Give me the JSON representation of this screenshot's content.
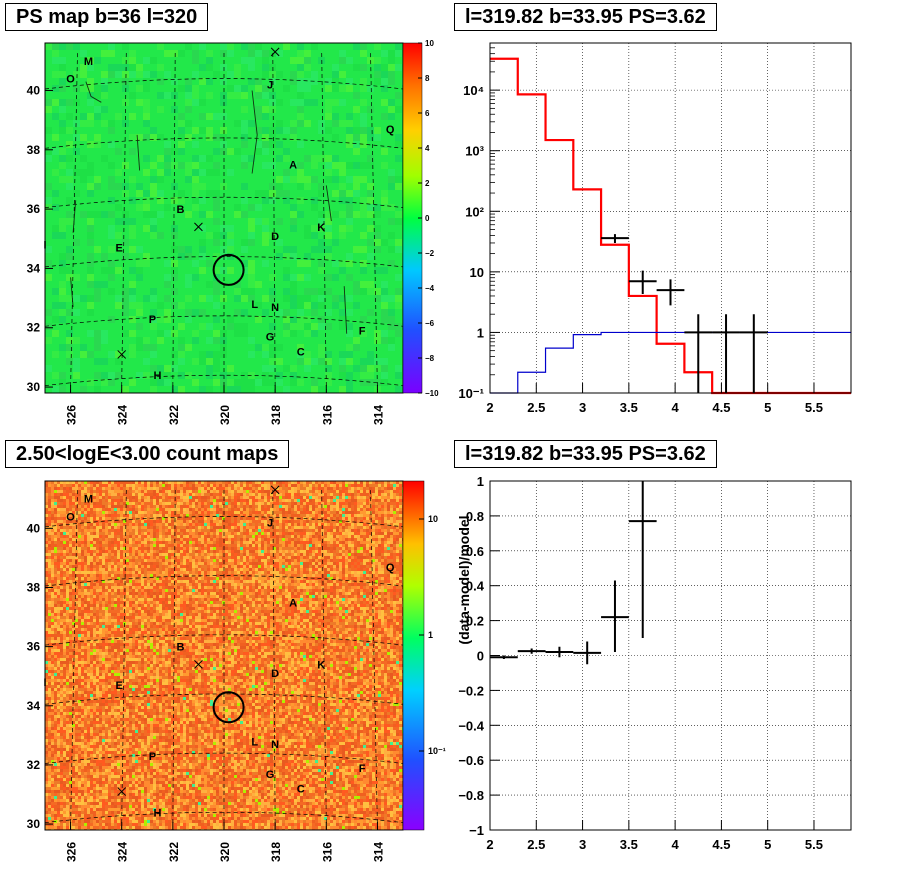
{
  "panels": {
    "ps_map": {
      "title": "PS map b=36 l=320",
      "x_ticks": [
        "326",
        "324",
        "322",
        "320",
        "318",
        "316",
        "314"
      ],
      "y_ticks": [
        "40",
        "38",
        "36",
        "34",
        "32",
        "30"
      ],
      "colorbar_ticks": [
        "10",
        "8",
        "6",
        "4",
        "2",
        "0",
        "−2",
        "−4",
        "−6",
        "−8",
        "−10"
      ],
      "source_labels": [
        "M",
        "O",
        "J",
        "Q",
        "A",
        "B",
        "I",
        "E",
        "D",
        "K",
        "L",
        "N",
        "P",
        "F",
        "G",
        "C",
        "H"
      ]
    },
    "count_map": {
      "title": "2.50<logE<3.00 count maps",
      "x_ticks": [
        "326",
        "324",
        "322",
        "320",
        "318",
        "316",
        "314"
      ],
      "y_ticks": [
        "40",
        "38",
        "36",
        "34",
        "32",
        "30"
      ],
      "colorbar_ticks": [
        "10",
        "1",
        "10⁻¹"
      ],
      "source_labels": [
        "M",
        "O",
        "J",
        "Q",
        "A",
        "B",
        "I",
        "E",
        "D",
        "K",
        "L",
        "N",
        "P",
        "F",
        "G",
        "C",
        "H"
      ]
    },
    "spectrum": {
      "title": "l=319.82 b=33.95 PS=3.62"
    },
    "residual": {
      "title": "l=319.82 b=33.95 PS=3.62",
      "ylabel": "(data-model)/model"
    }
  },
  "chart_data": [
    {
      "type": "heatmap",
      "xlim": [
        327,
        313
      ],
      "ylim": [
        29.8,
        41.6
      ],
      "colorbar_range": [
        -10,
        10
      ],
      "marker_circle": {
        "l": 319.82,
        "b": 33.95
      },
      "colors": {
        "base": "#22e84a",
        "contour": "#000000"
      }
    },
    {
      "type": "heatmap",
      "xlim": [
        327,
        313
      ],
      "ylim": [
        29.8,
        41.6
      ],
      "colorbar_scale": "log",
      "marker_circle": {
        "l": 319.82,
        "b": 33.95
      },
      "colors": {
        "base": "#f08030",
        "contour": "#000000"
      }
    },
    {
      "type": "line",
      "xlim": [
        2,
        5.9
      ],
      "ylim": [
        0.1,
        60000
      ],
      "yscale": "log",
      "x_ticks": [
        "2",
        "2.5",
        "3",
        "3.5",
        "4",
        "4.5",
        "5",
        "5.5"
      ],
      "y_ticks": [
        "10⁻¹",
        "1",
        "10",
        "10²",
        "10³",
        "10⁴"
      ],
      "grid": true,
      "series": [
        {
          "style": "step",
          "color": "#ff0000",
          "edges": [
            2.0,
            2.3,
            2.6,
            2.9,
            3.2,
            3.5,
            3.8,
            4.1,
            4.4,
            4.7,
            5.0,
            5.3,
            5.6,
            5.9
          ],
          "values": [
            33000,
            8500,
            1500,
            230,
            28,
            4,
            0.65,
            0.22,
            0.09,
            0.09,
            0.09,
            0.09,
            0.09
          ]
        },
        {
          "style": "step",
          "color": "#0000cc",
          "edges": [
            2.0,
            2.3,
            2.6,
            2.9,
            3.2,
            3.5,
            3.8,
            4.1,
            4.4,
            4.7,
            5.0,
            5.3,
            5.6,
            5.9
          ],
          "values": [
            0.09,
            0.22,
            0.55,
            0.92,
            1.0,
            1.0,
            1.0,
            1.0,
            1.0,
            1.0,
            1.0,
            1.0,
            1.0
          ]
        },
        {
          "style": "errorbar",
          "color": "#000000",
          "points": [
            {
              "x": 3.35,
              "y": 36,
              "ylo": 30,
              "yhi": 42,
              "xerr": 0.15
            },
            {
              "x": 3.65,
              "y": 7,
              "ylo": 4.3,
              "yhi": 10.5,
              "xerr": 0.15
            },
            {
              "x": 3.95,
              "y": 5,
              "ylo": 2.8,
              "yhi": 7.5,
              "xerr": 0.15
            },
            {
              "x": 4.25,
              "y": 1,
              "ylo": 0.05,
              "yhi": 2,
              "xerr": 0.15
            },
            {
              "x": 4.55,
              "y": 1,
              "ylo": 0.05,
              "yhi": 2,
              "xerr": 0.15
            },
            {
              "x": 4.85,
              "y": 1,
              "ylo": 0.05,
              "yhi": 2,
              "xerr": 0.15
            }
          ]
        }
      ]
    },
    {
      "type": "scatter",
      "xlim": [
        2,
        5.9
      ],
      "ylim": [
        -1,
        1
      ],
      "x_ticks": [
        "2",
        "2.5",
        "3",
        "3.5",
        "4",
        "4.5",
        "5",
        "5.5"
      ],
      "y_ticks": [
        "1",
        "0.8",
        "0.6",
        "0.4",
        "0.2",
        "0",
        "−0.2",
        "−0.4",
        "−0.6",
        "−0.8",
        "−1"
      ],
      "ylabel": "(data-model)/model",
      "grid": true,
      "points": [
        {
          "x": 2.15,
          "y": -0.01,
          "ylo": -0.02,
          "yhi": 0.0,
          "xerr": 0.15
        },
        {
          "x": 2.45,
          "y": 0.025,
          "ylo": 0.01,
          "yhi": 0.04,
          "xerr": 0.15
        },
        {
          "x": 2.75,
          "y": 0.02,
          "ylo": -0.01,
          "yhi": 0.05,
          "xerr": 0.15
        },
        {
          "x": 3.05,
          "y": 0.015,
          "ylo": -0.05,
          "yhi": 0.08,
          "xerr": 0.15
        },
        {
          "x": 3.35,
          "y": 0.22,
          "ylo": 0.02,
          "yhi": 0.43,
          "xerr": 0.15
        },
        {
          "x": 3.65,
          "y": 0.77,
          "ylo": 0.1,
          "yhi": 1.05,
          "xerr": 0.15
        }
      ]
    }
  ]
}
